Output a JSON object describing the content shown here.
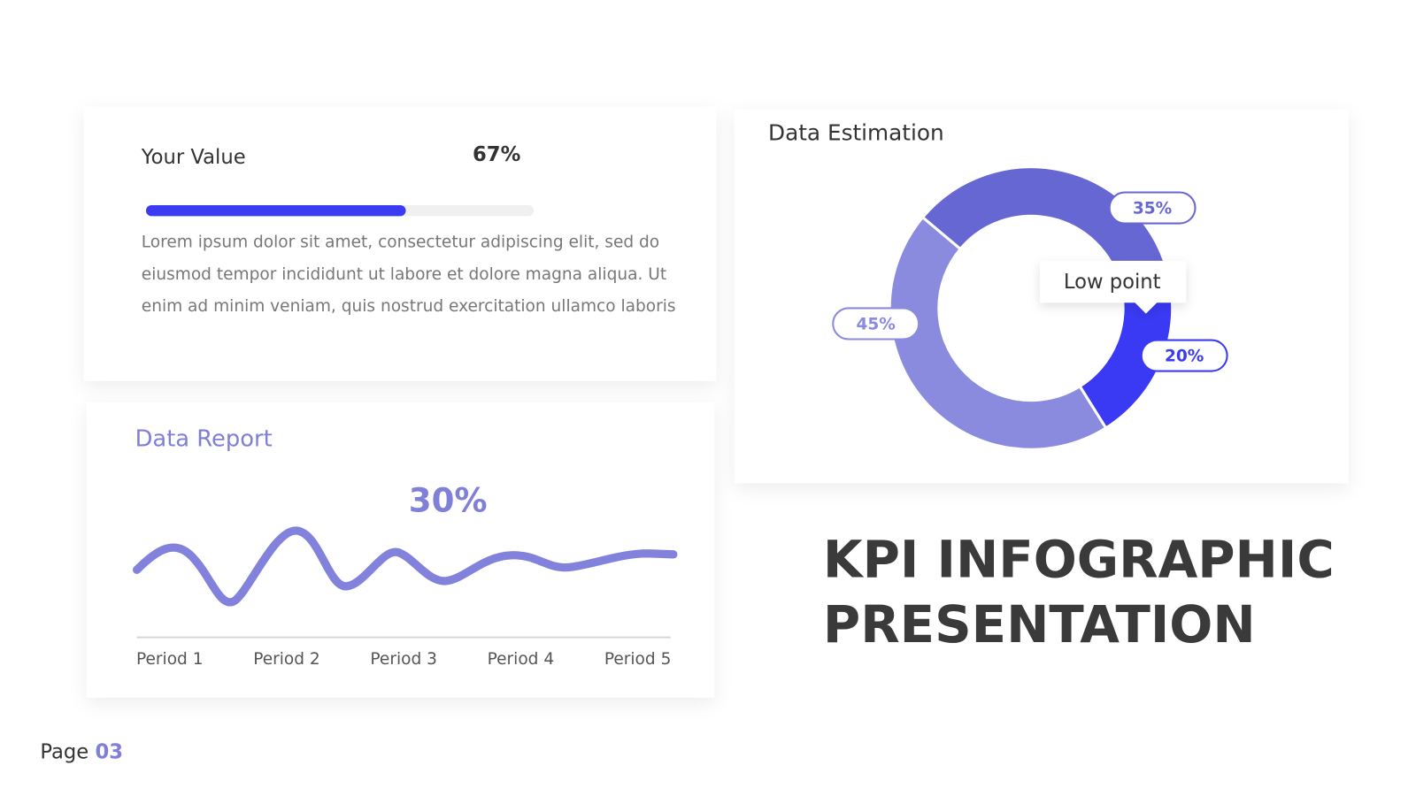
{
  "chart_data": [
    {
      "type": "progress",
      "title": "Your Value",
      "values": [
        67
      ],
      "value_labels": [
        "67%"
      ],
      "color": "#3b3bf2",
      "text": [
        "Lorem ipsum dolor sit amet, consectetur adipiscing elit, sed do",
        "eiusmod tempor incididunt ut labore et dolore magna aliqua. Ut",
        "enim ad minim veniam, quis nostrud exercitation ullamco laboris"
      ]
    },
    {
      "type": "pie",
      "title": "Data Estimation",
      "values": [
        35,
        20,
        45
      ],
      "value_labels": [
        "35%",
        "20%",
        "45%"
      ],
      "colors": [
        "#6767d4",
        "#3a3af5",
        "#8a8ade"
      ],
      "annotation": "Low point"
    },
    {
      "type": "line",
      "title": "Data Report",
      "annotation": "30%",
      "color": "#8282dc",
      "categories": [
        "Period 1",
        "Period 2",
        "Period 3",
        "Period 4",
        "Period 5"
      ]
    }
  ],
  "heading": [
    "KPI INFOGRAPHIC",
    "PRESENTATION"
  ],
  "footer": {
    "label": "Page",
    "number": "03"
  }
}
